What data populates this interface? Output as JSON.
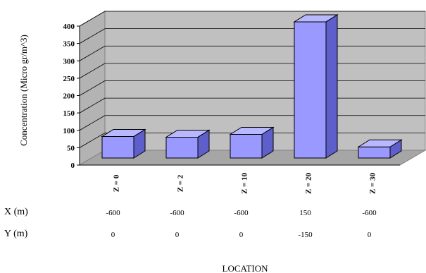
{
  "chart_data": {
    "type": "bar",
    "categories": [
      "Z = 0",
      "Z = 2",
      "Z = 10",
      "Z = 20",
      "Z = 30"
    ],
    "values": [
      62,
      60,
      68,
      392,
      32
    ],
    "ylabel": "Concentration (Micro gr/m^3)",
    "xlabel": "LOCATION",
    "ylim": [
      0,
      400
    ],
    "yticks": [
      "0",
      "50",
      "100",
      "150",
      "200",
      "250",
      "300",
      "350",
      "400"
    ],
    "grid": true,
    "three_d": true,
    "colors": {
      "bar_front": "#9999ff",
      "bar_side": "#5f5fcc",
      "bar_top": "#b8b8ff",
      "wall": "#c0c0c0",
      "floor": "#a6a6a6",
      "grid": "#000000"
    }
  },
  "table": {
    "x_header": "X (m)",
    "y_header": "Y (m)",
    "x_values": [
      "-600",
      "-600",
      "-600",
      "150",
      "-600"
    ],
    "y_values": [
      "0",
      "0",
      "0",
      "-150",
      "0"
    ]
  }
}
